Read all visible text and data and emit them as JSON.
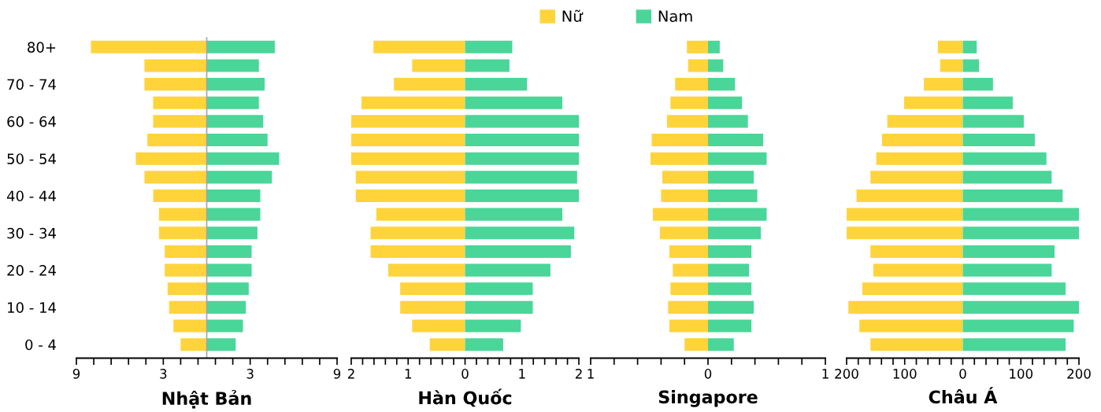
{
  "chart_data": [
    {
      "type": "bar",
      "orientation": "horizontal",
      "stacked": true,
      "xlabel": "Nhật Bản",
      "legend": "top",
      "categories": [
        "80+",
        null,
        "70 - 74",
        null,
        "60 - 64",
        null,
        "50 - 54",
        null,
        "40 - 44",
        null,
        "30 - 34",
        null,
        "20 - 24",
        null,
        "10 - 14",
        null,
        "0 - 4"
      ],
      "series": [
        {
          "name": "Nữ",
          "color": "#ffd43b",
          "values": [
            -8.0,
            -4.3,
            -4.3,
            -3.7,
            -3.7,
            -4.1,
            -4.9,
            -4.3,
            -3.7,
            -3.3,
            -3.3,
            -2.9,
            -2.9,
            -2.7,
            -2.6,
            -2.3,
            -1.8
          ]
        },
        {
          "name": "Nam",
          "color": "#4ad699",
          "values": [
            4.7,
            3.6,
            4.0,
            3.6,
            3.9,
            4.2,
            5.0,
            4.5,
            3.7,
            3.7,
            3.5,
            3.1,
            3.1,
            2.9,
            2.7,
            2.5,
            2.0
          ]
        }
      ],
      "xlim": [
        -9,
        9
      ],
      "xticks": [
        {
          "value": -9,
          "label": "9"
        },
        {
          "value": -7.8,
          "label": null
        },
        {
          "value": -6.6,
          "label": null
        },
        {
          "value": -5.4,
          "label": null
        },
        {
          "value": -4.2,
          "label": null
        },
        {
          "value": -3,
          "label": "3"
        },
        {
          "value": -1.8,
          "label": null
        },
        {
          "value": -0.6,
          "label": null
        },
        {
          "value": 0.6,
          "label": null
        },
        {
          "value": 1.8,
          "label": null
        },
        {
          "value": 3,
          "label": "3"
        },
        {
          "value": 4.2,
          "label": null
        },
        {
          "value": 5.4,
          "label": null
        },
        {
          "value": 6.6,
          "label": null
        },
        {
          "value": 7.8,
          "label": null
        },
        {
          "value": 9,
          "label": "9"
        }
      ],
      "ref_lines": [
        {
          "axis": "x",
          "value": 0,
          "color": "#a6a6a6"
        }
      ]
    },
    {
      "type": "bar",
      "orientation": "horizontal",
      "stacked": true,
      "xlabel": "Hàn Quốc",
      "categories": [
        null,
        null,
        null,
        null,
        null,
        null,
        null,
        null,
        null,
        null,
        null,
        null,
        null,
        null,
        null,
        null,
        null
      ],
      "series": [
        {
          "color": "#ffd43b",
          "values": [
            -1.61,
            -0.93,
            -1.25,
            -1.82,
            -2.0,
            -2.0,
            -2.0,
            -1.92,
            -1.92,
            -1.56,
            -1.66,
            -1.66,
            -1.35,
            -1.14,
            -1.14,
            -0.93,
            -0.62
          ]
        },
        {
          "color": "#4ad699",
          "values": [
            0.83,
            0.78,
            1.09,
            1.71,
            2.0,
            2.0,
            2.0,
            1.97,
            2.0,
            1.71,
            1.92,
            1.86,
            1.5,
            1.19,
            1.19,
            0.98,
            0.67
          ]
        }
      ],
      "xlim": [
        -2,
        2
      ],
      "xticks": [
        {
          "value": -2,
          "label": "2"
        },
        {
          "value": -1.8,
          "label": null
        },
        {
          "value": -1.6,
          "label": null
        },
        {
          "value": -1.4,
          "label": null
        },
        {
          "value": -1.2,
          "label": null
        },
        {
          "value": -1,
          "label": "1"
        },
        {
          "value": -0.8,
          "label": null
        },
        {
          "value": -0.6,
          "label": null
        },
        {
          "value": -0.4,
          "label": null
        },
        {
          "value": -0.2,
          "label": null
        },
        0,
        {
          "value": 0.2,
          "label": null
        },
        {
          "value": 0.4,
          "label": null
        },
        {
          "value": 0.6,
          "label": null
        },
        {
          "value": 0.8,
          "label": null
        },
        1,
        {
          "value": 1.2,
          "label": null
        },
        {
          "value": 1.4,
          "label": null
        },
        {
          "value": 1.6,
          "label": null
        },
        {
          "value": 1.8,
          "label": null
        },
        2
      ]
    },
    {
      "type": "bar",
      "orientation": "horizontal",
      "stacked": true,
      "xlabel": "Singapore",
      "categories": [
        null,
        null,
        null,
        null,
        null,
        null,
        null,
        null,
        null,
        null,
        null,
        null,
        null,
        null,
        null,
        null,
        null
      ],
      "series": [
        {
          "color": "#ffd43b",
          "values": [
            -0.18,
            -0.17,
            -0.28,
            -0.32,
            -0.35,
            -0.48,
            -0.49,
            -0.39,
            -0.4,
            -0.47,
            -0.41,
            -0.33,
            -0.3,
            -0.32,
            -0.34,
            -0.33,
            -0.2
          ]
        },
        {
          "color": "#4ad699",
          "values": [
            0.1,
            0.13,
            0.23,
            0.29,
            0.34,
            0.47,
            0.5,
            0.39,
            0.42,
            0.5,
            0.45,
            0.37,
            0.35,
            0.37,
            0.39,
            0.37,
            0.22
          ]
        }
      ],
      "xlim": [
        -1,
        1
      ],
      "xticks": [
        {
          "value": -1,
          "label": "1"
        },
        {
          "value": -0.8,
          "label": null
        },
        {
          "value": -0.6,
          "label": null
        },
        {
          "value": -0.4,
          "label": null
        },
        {
          "value": -0.2,
          "label": null
        },
        0,
        {
          "value": 0.2,
          "label": null
        },
        {
          "value": 0.4,
          "label": null
        },
        {
          "value": 0.6,
          "label": null
        },
        {
          "value": 0.8,
          "label": null
        },
        1
      ]
    },
    {
      "type": "bar",
      "orientation": "horizontal",
      "stacked": true,
      "xlabel": "Châu Á",
      "categories": [
        null,
        null,
        null,
        null,
        null,
        null,
        null,
        null,
        null,
        null,
        null,
        null,
        null,
        null,
        null,
        null,
        null
      ],
      "series": [
        {
          "color": "#ffd43b",
          "values": [
            -43,
            -39,
            -67,
            -101,
            -130,
            -139,
            -149,
            -159,
            -183,
            -200,
            -200,
            -159,
            -154,
            -173,
            -197,
            -178,
            -159
          ]
        },
        {
          "color": "#4ad699",
          "values": [
            24,
            28,
            52,
            86,
            105,
            124,
            144,
            153,
            172,
            200,
            200,
            158,
            153,
            177,
            200,
            191,
            177
          ]
        }
      ],
      "xlim": [
        -200,
        200
      ],
      "xticks": [
        {
          "value": -200,
          "label": "200"
        },
        {
          "value": -180,
          "label": null
        },
        {
          "value": -160,
          "label": null
        },
        {
          "value": -140,
          "label": null
        },
        {
          "value": -120,
          "label": null
        },
        {
          "value": -100,
          "label": "100"
        },
        {
          "value": -80,
          "label": null
        },
        {
          "value": -60,
          "label": null
        },
        {
          "value": -40,
          "label": null
        },
        {
          "value": -20,
          "label": null
        },
        0,
        {
          "value": 20,
          "label": null
        },
        {
          "value": 40,
          "label": null
        },
        {
          "value": 60,
          "label": null
        },
        {
          "value": 80,
          "label": null
        },
        100,
        {
          "value": 120,
          "label": null
        },
        {
          "value": 140,
          "label": null
        },
        {
          "value": 160,
          "label": null
        },
        {
          "value": 180,
          "label": null
        },
        200
      ]
    }
  ]
}
